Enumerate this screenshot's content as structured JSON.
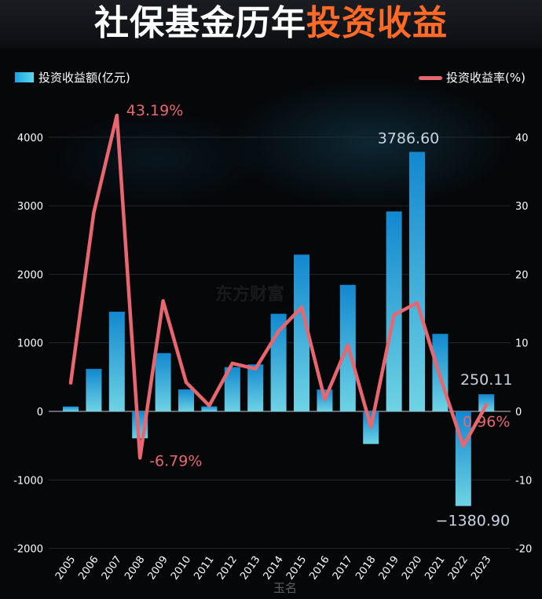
{
  "header": {
    "title_part1": "社保基金历年",
    "title_part2": "投资收益"
  },
  "legend": {
    "bar_label": "投资收益额(亿元)",
    "line_label": "投资收益率(%)"
  },
  "colors": {
    "bar_top": "#1288cf",
    "bar_bottom": "#6fd3e4",
    "line": "#e86670",
    "value_label": "#c9d4e3"
  },
  "chart_data": {
    "type": "bar",
    "categories": [
      "2005",
      "2006",
      "2007",
      "2008",
      "2009",
      "2010",
      "2011",
      "2012",
      "2013",
      "2014",
      "2015",
      "2016",
      "2017",
      "2018",
      "2019",
      "2020",
      "2021",
      "2022",
      "2023"
    ],
    "series": [
      {
        "name": "投资收益额(亿元)",
        "type": "bar",
        "axis": "left",
        "values": [
          71,
          620,
          1454,
          -393,
          850,
          321,
          73,
          646,
          685,
          1424,
          2287,
          319,
          1846,
          -476,
          2917,
          3786.6,
          1131,
          -1380.9,
          250.11
        ]
      },
      {
        "name": "投资收益率(%)",
        "type": "line",
        "axis": "right",
        "values": [
          4.16,
          29.01,
          43.19,
          -6.79,
          16.12,
          4.23,
          0.84,
          7.01,
          6.2,
          11.69,
          15.19,
          1.73,
          9.68,
          -2.28,
          14.06,
          15.84,
          5.0,
          -5.07,
          0.96
        ]
      }
    ],
    "y_left": {
      "ylim": [
        -2000,
        4000
      ],
      "ticks": [
        "-2000",
        "-1000",
        "0",
        "1000",
        "2000",
        "3000",
        "4000"
      ]
    },
    "y_right": {
      "ylim": [
        -20,
        40
      ],
      "ticks": [
        "-20",
        "-10",
        "0",
        "10",
        "20",
        "30",
        "40"
      ]
    },
    "annotations": [
      {
        "series": 1,
        "index": 2,
        "text": "43.19%"
      },
      {
        "series": 1,
        "index": 3,
        "text": "-6.79%"
      },
      {
        "series": 1,
        "index": 18,
        "text": "0.96%"
      },
      {
        "series": 0,
        "index": 15,
        "text": "3786.60"
      },
      {
        "series": 0,
        "index": 17,
        "text": "−1380.90"
      },
      {
        "series": 0,
        "index": 18,
        "text": "250.11"
      }
    ],
    "grid": true,
    "legend_position": "top"
  },
  "watermarks": {
    "center": "东方财富",
    "bottom": "玉名"
  }
}
